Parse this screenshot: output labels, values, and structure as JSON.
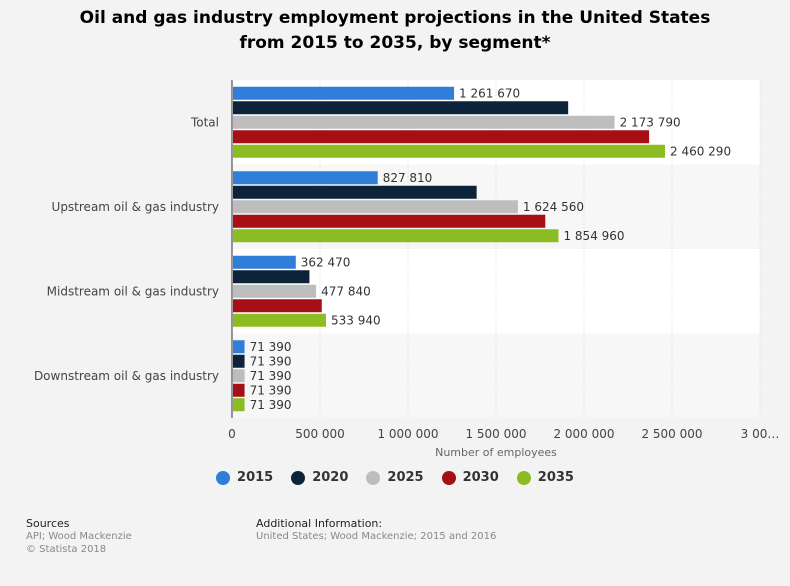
{
  "title": {
    "line1": "Oil and gas industry employment projections in the United States",
    "line2": "from 2015 to 2035, by segment*"
  },
  "chart_data": {
    "type": "bar",
    "orientation": "horizontal",
    "categories": [
      "Total",
      "Upstream oil & gas industry",
      "Midstream oil & gas industry",
      "Downstream oil & gas industry"
    ],
    "series": [
      {
        "name": "2015",
        "color": "#2f7ed8",
        "values": [
          1261670,
          827810,
          362470,
          71390
        ],
        "labels": [
          "1 261 670",
          "827 810",
          "362 470",
          "71 390"
        ]
      },
      {
        "name": "2020",
        "color": "#0d233a",
        "values": [
          1910000,
          1390000,
          440000,
          71390
        ],
        "labels": [
          "",
          "",
          "",
          "71 390"
        ]
      },
      {
        "name": "2025",
        "color": "#bdbdbd",
        "values": [
          2173790,
          1624560,
          477840,
          71390
        ],
        "labels": [
          "2 173 790",
          "1 624 560",
          "477 840",
          "71 390"
        ]
      },
      {
        "name": "2030",
        "color": "#a50f15",
        "values": [
          2370000,
          1780000,
          510000,
          71390
        ],
        "labels": [
          "",
          "",
          "",
          "71 390"
        ]
      },
      {
        "name": "2035",
        "color": "#8bbc21",
        "values": [
          2460290,
          1854960,
          533940,
          71390
        ],
        "labels": [
          "2 460 290",
          "1 854 960",
          "533 940",
          "71 390"
        ]
      }
    ],
    "xlabel": "Number of employees",
    "xlim": [
      0,
      3000000
    ],
    "xticks": [
      0,
      500000,
      1000000,
      1500000,
      2000000,
      2500000,
      3000000
    ],
    "xtick_labels": [
      "0",
      "500 000",
      "1 000 000",
      "1 500 000",
      "2 000 000",
      "2 500 000",
      "3 00…"
    ],
    "grid": true,
    "legend": "bottom"
  },
  "footer": {
    "sources_heading": "Sources",
    "sources_line1": "API; Wood Mackenzie",
    "sources_line2": "© Statista 2018",
    "info_heading": "Additional Information:",
    "info_line1": "United States; Wood Mackenzie; 2015 and 2016"
  }
}
